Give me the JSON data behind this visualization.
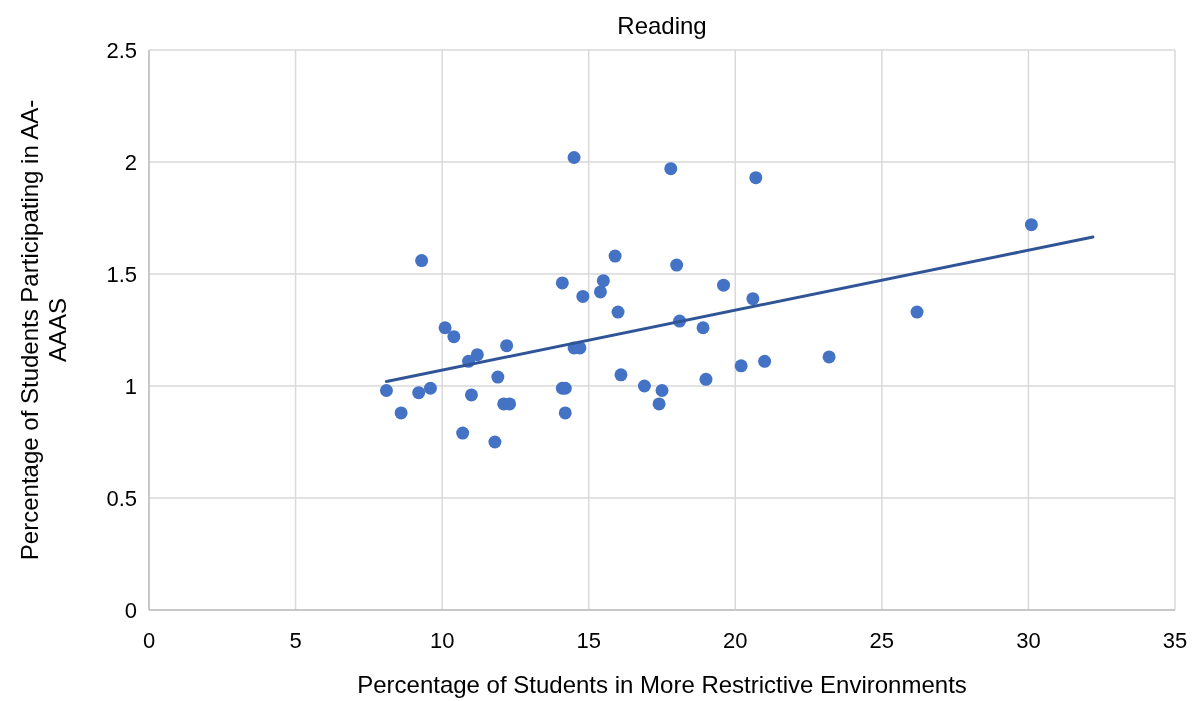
{
  "chart_data": {
    "type": "scatter",
    "title": "Reading",
    "xlabel": "Percentage of Students in More Restrictive Environments",
    "ylabel": "Percentage of Students Participating in AA-AAAS",
    "xlim": [
      0,
      35
    ],
    "xticks": [
      0,
      5,
      10,
      15,
      20,
      25,
      30,
      35
    ],
    "ylim": [
      0,
      2.5
    ],
    "yticks": [
      0,
      {
        "value": 0.5,
        "label": "0.5"
      },
      1,
      {
        "value": 1.5,
        "label": "1.5"
      },
      2,
      {
        "value": 2.5,
        "label": "2.5"
      }
    ],
    "grid": true,
    "marker": "circle",
    "series": [
      {
        "color": "#4472c4",
        "x": [
          8.1,
          8.6,
          9.2,
          9.3,
          9.6,
          10.1,
          10.4,
          10.7,
          10.9,
          11.2,
          11.0,
          11.8,
          11.9,
          12.1,
          12.2,
          12.3,
          14.1,
          14.1,
          14.2,
          14.2,
          14.5,
          14.5,
          14.7,
          14.8,
          15.4,
          15.5,
          15.9,
          16.0,
          16.1,
          16.9,
          17.4,
          17.5,
          17.8,
          18.0,
          18.1,
          18.9,
          19.0,
          19.6,
          20.2,
          20.6,
          20.7,
          21.0,
          23.2,
          26.2,
          30.1
        ],
        "values": [
          0.98,
          0.88,
          0.97,
          1.56,
          0.99,
          1.26,
          1.22,
          0.79,
          1.11,
          1.14,
          0.96,
          0.75,
          1.04,
          0.92,
          1.18,
          0.92,
          1.46,
          0.99,
          0.99,
          0.88,
          2.02,
          1.17,
          1.17,
          1.4,
          1.42,
          1.47,
          1.58,
          1.33,
          1.05,
          1.0,
          0.92,
          0.98,
          1.97,
          1.54,
          1.29,
          1.26,
          1.03,
          1.45,
          1.09,
          1.39,
          1.93,
          1.11,
          1.13,
          1.33,
          1.72
        ]
      },
      {
        "type": "line",
        "color": "#2f5597",
        "marker": "none",
        "x": [
          8.1,
          32.2
        ],
        "values": [
          1.02,
          1.665
        ]
      }
    ]
  }
}
